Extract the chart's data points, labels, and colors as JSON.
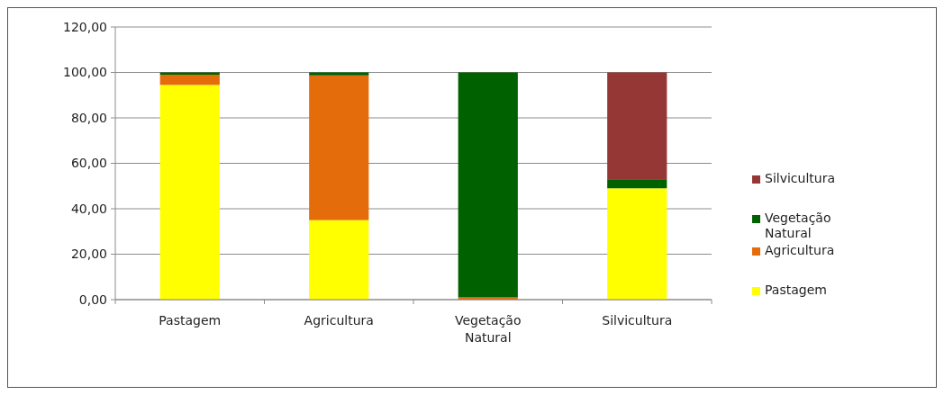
{
  "chart_data": {
    "type": "bar",
    "stacked": true,
    "categories": [
      "Pastagem",
      "Agricultura",
      "Vegetação Natural",
      "Silvicultura"
    ],
    "series": [
      {
        "name": "Pastagem",
        "color": "#ffff00",
        "values": [
          94.5,
          35,
          0,
          49
        ]
      },
      {
        "name": "Agricultura",
        "color": "#e46c0a",
        "values": [
          4.5,
          63.7,
          1,
          0
        ]
      },
      {
        "name": "Vegetação Natural",
        "color": "#006100",
        "values": [
          1,
          1.3,
          99,
          4
        ]
      },
      {
        "name": "Silvicultura",
        "color": "#953735",
        "values": [
          0,
          0,
          0,
          47
        ]
      }
    ],
    "ylim": [
      0,
      120
    ],
    "yticks": [
      {
        "value": 0,
        "label": "0,00"
      },
      {
        "value": 20,
        "label": "20,00"
      },
      {
        "value": 40,
        "label": "40,00"
      },
      {
        "value": 60,
        "label": "60,00"
      },
      {
        "value": 80,
        "label": "80,00"
      },
      {
        "value": 100,
        "label": "100,00"
      },
      {
        "value": 120,
        "label": "120,00"
      }
    ],
    "grid": "y",
    "legend": "right"
  }
}
